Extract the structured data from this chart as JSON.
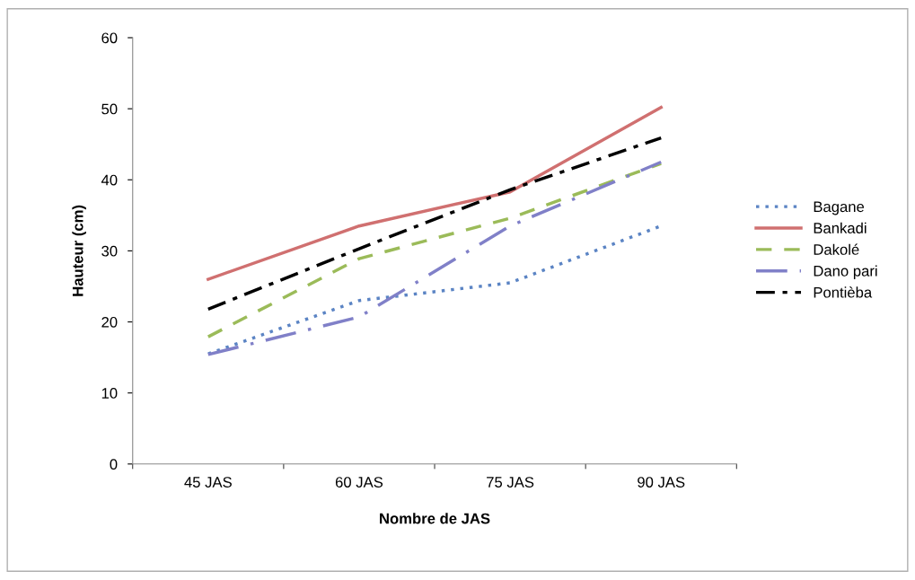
{
  "chart_data": {
    "type": "line",
    "xlabel": "Nombre de JAS",
    "ylabel": "Hauteur (cm)",
    "categories": [
      "45 JAS",
      "60 JAS",
      "75 JAS",
      "90 JAS"
    ],
    "series": [
      {
        "name": "Bagane",
        "color": "#5b84c4",
        "line_style": "dotted",
        "values": [
          15.5,
          23,
          25.5,
          33.5
        ]
      },
      {
        "name": "Bankadi",
        "color": "#d07070",
        "line_style": "solid",
        "values": [
          26,
          33.5,
          38.3,
          50.2
        ]
      },
      {
        "name": "Dakolé",
        "color": "#9bbb59",
        "line_style": "dashed",
        "values": [
          17.9,
          28.9,
          34.6,
          42.3
        ]
      },
      {
        "name": "Dano pari",
        "color": "#8080c8",
        "line_style": "longdashdot",
        "values": [
          15.4,
          20.7,
          33.5,
          42.5
        ]
      },
      {
        "name": "Pontièba",
        "color": "#000000",
        "line_style": "dashdot",
        "values": [
          21.8,
          30.3,
          38.6,
          45.9
        ]
      }
    ],
    "ylim": [
      0,
      60
    ],
    "yticks": [
      0,
      10,
      20,
      30,
      40,
      50,
      60
    ],
    "grid": false,
    "legend": "right",
    "marker": "none"
  }
}
